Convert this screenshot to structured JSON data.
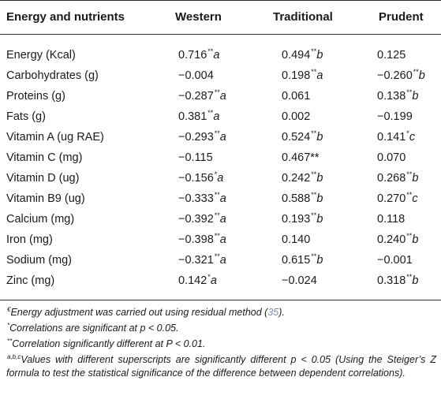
{
  "headers": [
    "Energy and nutrients",
    "Western",
    "Traditional",
    "Prudent"
  ],
  "rows": [
    {
      "label": "Energy (Kcal)",
      "w": "0.716",
      "ws": "**",
      "wl": "a",
      "t": "0.494",
      "ts": "**",
      "tl": "b",
      "p": "0.125",
      "ps": "",
      "pl": ""
    },
    {
      "label": "Carbohydrates (g)",
      "w": "−0.004",
      "ws": "",
      "wl": "",
      "t": "0.198",
      "ts": "**",
      "tl": "a",
      "p": "−0.260",
      "ps": "**",
      "pl": "b"
    },
    {
      "label": "Proteins (g)",
      "w": "−0.287",
      "ws": "**",
      "wl": "a",
      "t": "0.061",
      "ts": "",
      "tl": "",
      "p": "0.138",
      "ps": "**",
      "pl": "b"
    },
    {
      "label": "Fats (g)",
      "w": "0.381",
      "ws": "**",
      "wl": "a",
      "t": "0.002",
      "ts": "",
      "tl": "",
      "p": "−0.199",
      "ps": "",
      "pl": ""
    },
    {
      "label": "Vitamin A (ug RAE)",
      "w": "−0.293",
      "ws": "**",
      "wl": "a",
      "t": "0.524",
      "ts": "**",
      "tl": "b",
      "p": "0.141",
      "ps": "*",
      "pl": "c"
    },
    {
      "label": "Vitamin C (mg)",
      "w": "−0.115",
      "ws": "",
      "wl": "",
      "t": "0.467**",
      "ts": "",
      "tl": "",
      "p": "0.070",
      "ps": "",
      "pl": ""
    },
    {
      "label": "Vitamin D (ug)",
      "w": "−0.156",
      "ws": "*",
      "wl": "a",
      "t": "0.242",
      "ts": "**",
      "tl": "b",
      "p": "0.268",
      "ps": "**",
      "pl": "b"
    },
    {
      "label": "Vitamin B9 (ug)",
      "w": "−0.333",
      "ws": "**",
      "wl": "a",
      "t": "0.588",
      "ts": "**",
      "tl": "b",
      "p": "0.270",
      "ps": "**",
      "pl": "c"
    },
    {
      "label": "Calcium (mg)",
      "w": "−0.392",
      "ws": "**",
      "wl": "a",
      "t": "0.193",
      "ts": "**",
      "tl": "b",
      "p": "0.118",
      "ps": "",
      "pl": ""
    },
    {
      "label": "Iron (mg)",
      "w": "−0.398",
      "ws": "**",
      "wl": "a",
      "t": "0.140",
      "ts": "",
      "tl": "",
      "p": "0.240",
      "ps": "**",
      "pl": "b"
    },
    {
      "label": "Sodium (mg)",
      "w": "−0.321",
      "ws": "**",
      "wl": "a",
      "t": "0.615",
      "ts": "**",
      "tl": "b",
      "p": "−0.001",
      "ps": "",
      "pl": ""
    },
    {
      "label": "Zinc (mg)",
      "w": "0.142",
      "ws": "*",
      "wl": "a",
      "t": "−0.024",
      "ts": "",
      "tl": "",
      "p": "0.318",
      "ps": "**",
      "pl": "b"
    }
  ],
  "notes": {
    "n1_mark": "€",
    "n1_text": "Energy adjustment was carried out using residual method (",
    "n1_ref": "35",
    "n1_end": ").",
    "n2_mark": "*",
    "n2_text": "Correlations are significant at p < 0.05.",
    "n3_mark": "**",
    "n3_text": "Correlation significantly different at P < 0.01.",
    "n4_mark": "a,b,c",
    "n4_text": "Values with different superscripts are significantly different p < 0.05 (Using the Steiger’s Z formula to test the statistical significance of the difference between dependent correlations)."
  }
}
